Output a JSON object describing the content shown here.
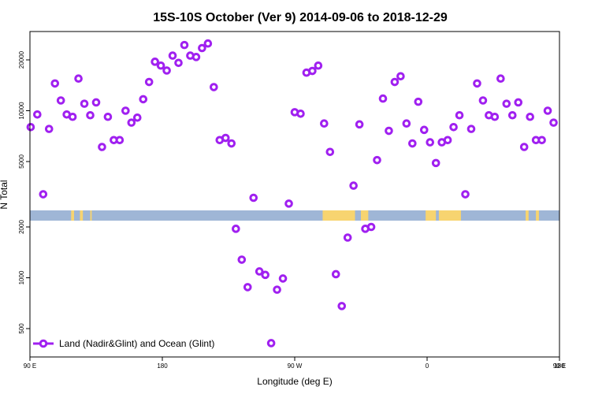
{
  "chart_data": {
    "type": "scatter",
    "title": "15S-10S October (Ver 9)   2014-09-06 to 2018-12-29",
    "xlabel": "Longitude (deg E)",
    "ylabel": "N Total",
    "xlim": [
      90,
      450
    ],
    "x_ticks": [
      {
        "value": 90,
        "label": "90 E"
      },
      {
        "value": 180,
        "label": "180"
      },
      {
        "value": 270,
        "label": "90 W"
      },
      {
        "value": 360,
        "label": "0"
      },
      {
        "value": 450,
        "label": "90 E"
      },
      {
        "value": 540,
        "label": "180"
      }
    ],
    "y_scale": "log",
    "y_ticks_upper": [
      5000,
      10000,
      20000
    ],
    "y_ticks_lower": [
      500,
      1000,
      2000
    ],
    "legend": {
      "label": "Land (Nadir&Glint) and Ocean (Glint)",
      "position": "bottom-left"
    },
    "colors": {
      "points": "#a020f0",
      "ocean": "#9fb6d6",
      "land": "#f7d470"
    },
    "series": [
      {
        "name": "Land (Nadir&Glint) and Ocean (Glint)",
        "points": [
          [
            90.5,
            8000
          ],
          [
            95,
            9500
          ],
          [
            99,
            3200
          ],
          [
            103,
            7800
          ],
          [
            107,
            14500
          ],
          [
            111,
            11500
          ],
          [
            115,
            9500
          ],
          [
            119,
            9200
          ],
          [
            123,
            15500
          ],
          [
            127,
            11000
          ],
          [
            131,
            9400
          ],
          [
            135,
            11200
          ],
          [
            139,
            6100
          ],
          [
            143,
            9200
          ],
          [
            147,
            6700
          ],
          [
            151,
            6700
          ],
          [
            155,
            10000
          ],
          [
            159,
            8500
          ],
          [
            163,
            9100
          ],
          [
            167,
            11700
          ],
          [
            171,
            14800
          ],
          [
            175,
            19500
          ],
          [
            179,
            18500
          ],
          [
            183,
            17300
          ],
          [
            187,
            21200
          ],
          [
            191,
            19200
          ],
          [
            195,
            24500
          ],
          [
            199,
            21200
          ],
          [
            203,
            20800
          ],
          [
            207,
            23500
          ],
          [
            211,
            25000
          ],
          [
            215,
            13800
          ],
          [
            219,
            6700
          ],
          [
            223,
            6900
          ],
          [
            227,
            6400
          ],
          [
            230,
            1950
          ],
          [
            234,
            1280
          ],
          [
            238,
            880
          ],
          [
            242,
            3050
          ],
          [
            246,
            1090
          ],
          [
            250,
            1040
          ],
          [
            254,
            410
          ],
          [
            258,
            850
          ],
          [
            262,
            990
          ],
          [
            266,
            2750
          ],
          [
            270,
            9800
          ],
          [
            274,
            9600
          ],
          [
            278,
            16800
          ],
          [
            282,
            17200
          ],
          [
            286,
            18500
          ],
          [
            290,
            8400
          ],
          [
            294,
            5700
          ],
          [
            298,
            1050
          ],
          [
            302,
            680
          ],
          [
            306,
            1730
          ],
          [
            310,
            3600
          ],
          [
            314,
            8300
          ],
          [
            318,
            1950
          ],
          [
            322,
            2000
          ],
          [
            326,
            5100
          ],
          [
            330,
            11800
          ],
          [
            334,
            7600
          ],
          [
            338,
            14800
          ],
          [
            342,
            16000
          ],
          [
            346,
            8400
          ],
          [
            350,
            6400
          ],
          [
            354,
            11300
          ],
          [
            358,
            7700
          ],
          [
            362,
            6500
          ],
          [
            366,
            4900
          ],
          [
            370,
            6500
          ],
          [
            374,
            6700
          ],
          [
            378,
            8000
          ],
          [
            382,
            9400
          ],
          [
            386,
            3200
          ],
          [
            390,
            7800
          ],
          [
            394,
            14500
          ],
          [
            398,
            11500
          ],
          [
            402,
            9400
          ],
          [
            406,
            9200
          ],
          [
            410,
            15500
          ],
          [
            414,
            11000
          ],
          [
            418,
            9400
          ],
          [
            422,
            11200
          ],
          [
            426,
            6100
          ],
          [
            430,
            9200
          ],
          [
            434,
            6700
          ],
          [
            438,
            6700
          ],
          [
            442,
            10000
          ],
          [
            446,
            8500
          ]
        ]
      }
    ]
  }
}
